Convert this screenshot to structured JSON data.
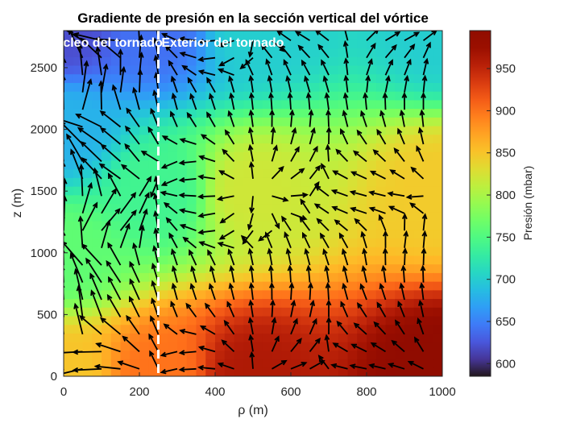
{
  "chart_data": {
    "type": "heatmap",
    "title": "Gradiente de presión en la sección vertical del vórtice",
    "xlabel": "ρ (m)",
    "ylabel": "z (m)",
    "xlim": [
      0,
      1000
    ],
    "ylim": [
      0,
      2800
    ],
    "x_ticks": [
      0,
      200,
      400,
      600,
      800,
      1000
    ],
    "y_ticks": [
      0,
      500,
      1000,
      1500,
      2000,
      2500
    ],
    "colorbar": {
      "label": "Presión (mbar)",
      "range": [
        585,
        995
      ],
      "ticks": [
        600,
        650,
        700,
        750,
        800,
        850,
        900,
        950
      ],
      "colormap": "turbo"
    },
    "field": {
      "description_of_values": "pressure (mbar) at rho, z",
      "sample_points": [
        {
          "rho": 0,
          "z": 0,
          "p": 850
        },
        {
          "rho": 0,
          "z": 1000,
          "p": 760
        },
        {
          "rho": 0,
          "z": 2000,
          "p": 680
        },
        {
          "rho": 0,
          "z": 2800,
          "p": 620
        },
        {
          "rho": 250,
          "z": 0,
          "p": 900
        },
        {
          "rho": 250,
          "z": 1500,
          "p": 740
        },
        {
          "rho": 250,
          "z": 2800,
          "p": 640
        },
        {
          "rho": 500,
          "z": 0,
          "p": 960
        },
        {
          "rho": 500,
          "z": 1500,
          "p": 820
        },
        {
          "rho": 500,
          "z": 2800,
          "p": 700
        },
        {
          "rho": 1000,
          "z": 0,
          "p": 990
        },
        {
          "rho": 1000,
          "z": 1500,
          "p": 845
        },
        {
          "rho": 1000,
          "z": 2800,
          "p": 700
        }
      ]
    },
    "vector_field": {
      "type": "quiver",
      "rho_values": [
        0,
        50,
        100,
        150,
        200,
        250,
        300,
        350,
        400,
        450,
        500,
        550,
        600,
        650,
        700,
        750,
        800,
        850,
        900,
        950
      ],
      "z_values": [
        60,
        200,
        340,
        480,
        620,
        760,
        900,
        1040,
        1180,
        1320,
        1460,
        1600,
        1740,
        1880,
        2020,
        2160,
        2300,
        2440,
        2580,
        2720
      ],
      "pattern": "arrows point toward lower pressure: leftward-down near axis, upward far from axis"
    },
    "boundary": {
      "rho": 250,
      "style": "dashed white vertical line"
    },
    "annotations": [
      {
        "text": "Núcleo del tornado",
        "rho": 0
      },
      {
        "text": "Exterior del tornado",
        "rho": 420
      }
    ]
  }
}
